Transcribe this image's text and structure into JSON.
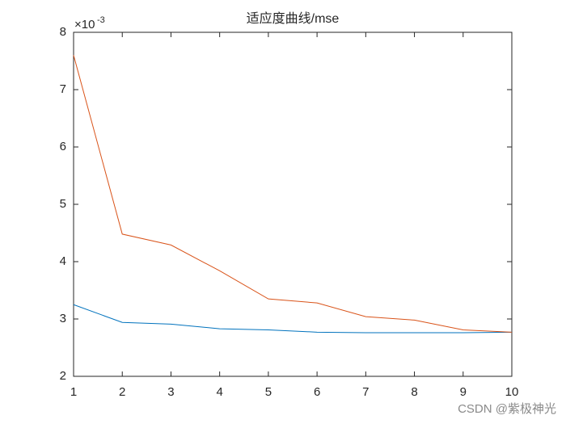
{
  "chart_data": {
    "type": "line",
    "title": "适应度曲线/mse",
    "x": [
      1,
      2,
      3,
      4,
      5,
      6,
      7,
      8,
      9,
      10
    ],
    "series": [
      {
        "color": "#0072BD",
        "values": [
          3.25,
          2.94,
          2.91,
          2.83,
          2.81,
          2.77,
          2.76,
          2.76,
          2.76,
          2.77
        ]
      },
      {
        "color": "#D95319",
        "values": [
          7.6,
          4.48,
          4.29,
          3.84,
          3.35,
          3.28,
          3.04,
          2.98,
          2.81,
          2.77
        ]
      }
    ],
    "xlim": [
      1,
      10
    ],
    "xticks": [
      1,
      2,
      3,
      4,
      5,
      6,
      7,
      8,
      9,
      10
    ],
    "ylim": [
      2,
      8
    ],
    "yticks": [
      2,
      3,
      4,
      5,
      6,
      7,
      8
    ],
    "y_multiplier": "×10",
    "y_exponent": "-3",
    "watermark": "CSDN @紫极神光"
  }
}
